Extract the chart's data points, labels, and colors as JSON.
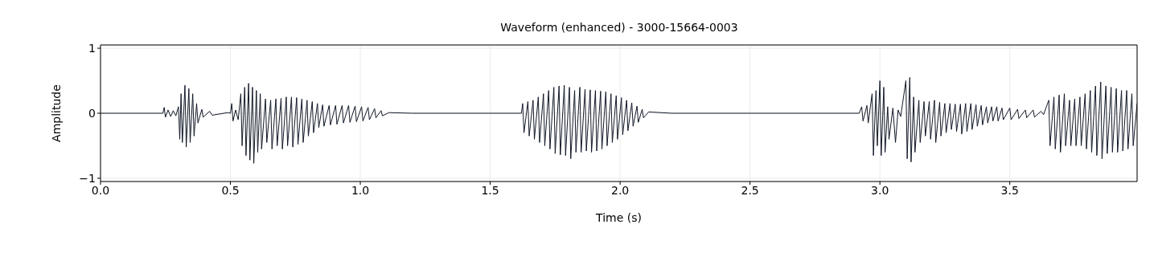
{
  "chart_data": {
    "type": "line",
    "title": "Waveform (enhanced) - 3000-15664-0003",
    "xlabel": "Time (s)",
    "ylabel": "Amplitude",
    "xlim": [
      0,
      3.99
    ],
    "ylim": [
      -1.05,
      1.05
    ],
    "xticks": [
      {
        "value": 0,
        "label": "0.0"
      },
      0.5,
      {
        "value": 1,
        "label": "1.0"
      },
      1.5,
      {
        "value": 2,
        "label": "2.0"
      },
      2.5,
      {
        "value": 3,
        "label": "3.0"
      },
      3.5
    ],
    "yticks": [
      -1,
      0,
      1
    ],
    "grid": true,
    "marker": "none",
    "line_style": "solid",
    "series": [
      {
        "color": "#111827",
        "x": [
          0,
          0.24,
          0.245,
          0.25,
          0.26,
          0.27,
          0.28,
          0.29,
          0.3,
          0.305,
          0.31,
          0.315,
          0.325,
          0.33,
          0.34,
          0.345,
          0.355,
          0.36,
          0.37,
          0.375,
          0.39,
          0.395,
          0.42,
          0.43,
          0.49,
          0.5,
          0.505,
          0.51,
          0.52,
          0.53,
          0.54,
          0.545,
          0.555,
          0.56,
          0.57,
          0.575,
          0.585,
          0.59,
          0.6,
          0.605,
          0.615,
          0.62,
          0.635,
          0.64,
          0.655,
          0.66,
          0.675,
          0.68,
          0.695,
          0.7,
          0.715,
          0.72,
          0.735,
          0.74,
          0.755,
          0.76,
          0.775,
          0.78,
          0.795,
          0.8,
          0.815,
          0.82,
          0.835,
          0.84,
          0.855,
          0.86,
          0.88,
          0.885,
          0.905,
          0.91,
          0.93,
          0.935,
          0.955,
          0.96,
          0.98,
          0.985,
          1.005,
          1.01,
          1.03,
          1.035,
          1.055,
          1.06,
          1.08,
          1.085,
          1.11,
          1.2,
          1.62,
          1.625,
          1.63,
          1.645,
          1.65,
          1.665,
          1.67,
          1.685,
          1.69,
          1.705,
          1.71,
          1.725,
          1.73,
          1.745,
          1.75,
          1.765,
          1.77,
          1.785,
          1.79,
          1.805,
          1.81,
          1.825,
          1.83,
          1.845,
          1.85,
          1.865,
          1.87,
          1.885,
          1.89,
          1.905,
          1.91,
          1.925,
          1.93,
          1.945,
          1.95,
          1.965,
          1.97,
          1.985,
          1.99,
          2.005,
          2.01,
          2.025,
          2.03,
          2.045,
          2.05,
          2.065,
          2.07,
          2.085,
          2.09,
          2.11,
          2.2,
          2.92,
          2.93,
          2.935,
          2.95,
          2.955,
          2.97,
          2.975,
          2.985,
          2.99,
          3.0,
          3.005,
          3.015,
          3.02,
          3.03,
          3.035,
          3.05,
          3.06,
          3.07,
          3.08,
          3.1,
          3.105,
          3.115,
          3.12,
          3.13,
          3.135,
          3.15,
          3.155,
          3.17,
          3.175,
          3.19,
          3.195,
          3.21,
          3.215,
          3.23,
          3.235,
          3.25,
          3.255,
          3.27,
          3.275,
          3.29,
          3.295,
          3.31,
          3.315,
          3.33,
          3.335,
          3.35,
          3.355,
          3.37,
          3.375,
          3.39,
          3.395,
          3.41,
          3.415,
          3.43,
          3.435,
          3.45,
          3.455,
          3.47,
          3.475,
          3.5,
          3.505,
          3.53,
          3.535,
          3.56,
          3.565,
          3.59,
          3.595,
          3.62,
          3.63,
          3.65,
          3.655,
          3.67,
          3.675,
          3.69,
          3.695,
          3.71,
          3.715,
          3.73,
          3.735,
          3.75,
          3.755,
          3.77,
          3.775,
          3.79,
          3.795,
          3.81,
          3.815,
          3.83,
          3.835,
          3.85,
          3.855,
          3.87,
          3.875,
          3.89,
          3.895,
          3.91,
          3.915,
          3.93,
          3.935,
          3.95,
          3.955,
          3.97,
          3.975,
          3.99
        ],
        "values": [
          0,
          0,
          0.09,
          -0.06,
          0.05,
          -0.05,
          0.04,
          -0.04,
          0.1,
          -0.4,
          0.3,
          -0.45,
          0.43,
          -0.52,
          0.38,
          -0.45,
          0.3,
          -0.35,
          0.15,
          -0.15,
          0.06,
          -0.06,
          0.03,
          -0.03,
          0.01,
          0,
          0.15,
          -0.12,
          0.05,
          -0.1,
          0.3,
          -0.5,
          0.4,
          -0.65,
          0.46,
          -0.72,
          0.4,
          -0.77,
          0.35,
          -0.6,
          0.3,
          -0.55,
          0.22,
          -0.45,
          0.2,
          -0.55,
          0.22,
          -0.5,
          0.23,
          -0.55,
          0.25,
          -0.5,
          0.25,
          -0.52,
          0.24,
          -0.48,
          0.22,
          -0.45,
          0.2,
          -0.35,
          0.18,
          -0.3,
          0.15,
          -0.22,
          0.13,
          -0.2,
          0.12,
          -0.18,
          0.12,
          -0.17,
          0.12,
          -0.15,
          0.12,
          -0.14,
          0.11,
          -0.13,
          0.1,
          -0.12,
          0.09,
          -0.1,
          0.07,
          -0.07,
          0.04,
          -0.04,
          0.01,
          0,
          0,
          0.15,
          -0.3,
          0.18,
          -0.35,
          0.2,
          -0.4,
          0.25,
          -0.45,
          0.3,
          -0.5,
          0.35,
          -0.55,
          0.4,
          -0.62,
          0.42,
          -0.64,
          0.43,
          -0.65,
          0.4,
          -0.7,
          0.35,
          -0.6,
          0.4,
          -0.6,
          0.37,
          -0.58,
          0.36,
          -0.6,
          0.35,
          -0.58,
          0.34,
          -0.55,
          0.33,
          -0.5,
          0.3,
          -0.45,
          0.27,
          -0.4,
          0.24,
          -0.33,
          0.2,
          -0.27,
          0.16,
          -0.2,
          0.11,
          -0.14,
          0.06,
          -0.07,
          0.02,
          0,
          0,
          0.1,
          -0.12,
          0.12,
          -0.15,
          0.3,
          -0.65,
          0.35,
          -0.5,
          0.5,
          -0.65,
          0.4,
          -0.6,
          0.1,
          -0.4,
          0.08,
          -0.45,
          0.05,
          -0.05,
          0.5,
          -0.7,
          0.55,
          -0.75,
          0.25,
          -0.6,
          0.2,
          -0.45,
          0.18,
          -0.35,
          0.18,
          -0.4,
          0.2,
          -0.45,
          0.17,
          -0.35,
          0.15,
          -0.3,
          0.15,
          -0.25,
          0.14,
          -0.28,
          0.14,
          -0.32,
          0.15,
          -0.28,
          0.15,
          -0.25,
          0.13,
          -0.2,
          0.12,
          -0.18,
          0.1,
          -0.15,
          0.1,
          -0.12,
          0.1,
          -0.12,
          0.08,
          -0.1,
          0.08,
          -0.1,
          0.06,
          -0.08,
          0.05,
          -0.07,
          0.05,
          -0.06,
          0.03,
          -0.02,
          0.2,
          -0.5,
          0.25,
          -0.55,
          0.28,
          -0.6,
          0.3,
          -0.5,
          0.2,
          -0.5,
          0.22,
          -0.5,
          0.25,
          -0.5,
          0.3,
          -0.55,
          0.35,
          -0.6,
          0.42,
          -0.65,
          0.48,
          -0.7,
          0.42,
          -0.62,
          0.4,
          -0.6,
          0.38,
          -0.6,
          0.35,
          -0.58,
          0.35,
          -0.55,
          0.3,
          -0.5,
          0.15
        ]
      }
    ]
  }
}
